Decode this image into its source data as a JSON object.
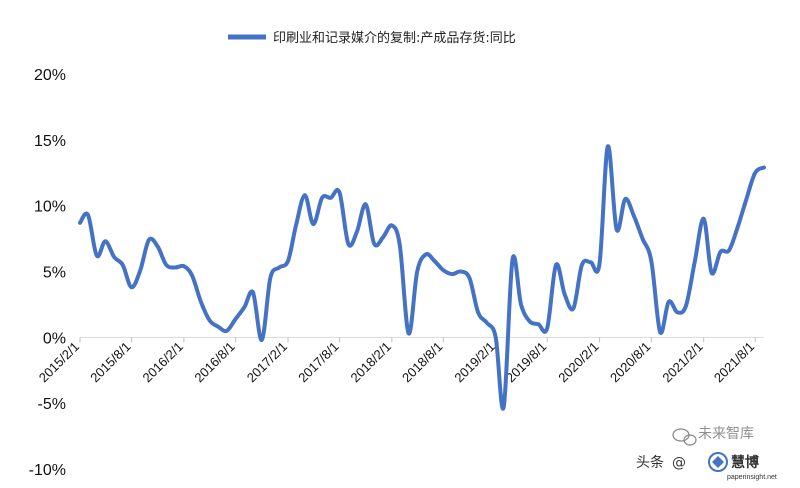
{
  "chart_data": {
    "type": "line",
    "legend_position": "top-center",
    "grid": false,
    "series": [
      {
        "name": "印刷业和记录媒介的复制:产成品存货:同比",
        "color": "#4472C4",
        "points": [
          [
            "2015-02-01",
            8.7
          ],
          [
            "2015-03-01",
            9.3
          ],
          [
            "2015-04-01",
            6.2
          ],
          [
            "2015-05-01",
            7.3
          ],
          [
            "2015-06-01",
            6.1
          ],
          [
            "2015-07-01",
            5.5
          ],
          [
            "2015-08-01",
            3.8
          ],
          [
            "2015-09-01",
            5.1
          ],
          [
            "2015-10-01",
            7.4
          ],
          [
            "2015-11-01",
            6.9
          ],
          [
            "2015-12-01",
            5.5
          ],
          [
            "2016-01-01",
            5.3
          ],
          [
            "2016-02-01",
            5.4
          ],
          [
            "2016-03-01",
            4.7
          ],
          [
            "2016-04-01",
            2.7
          ],
          [
            "2016-05-01",
            1.3
          ],
          [
            "2016-06-01",
            0.8
          ],
          [
            "2016-07-01",
            0.5
          ],
          [
            "2016-08-01",
            1.4
          ],
          [
            "2016-09-01",
            2.3
          ],
          [
            "2016-10-01",
            3.4
          ],
          [
            "2016-11-01",
            -0.2
          ],
          [
            "2016-12-01",
            4.5
          ],
          [
            "2017-01-01",
            5.3
          ],
          [
            "2017-02-01",
            5.8
          ],
          [
            "2017-03-01",
            8.5
          ],
          [
            "2017-04-01",
            10.8
          ],
          [
            "2017-05-01",
            8.6
          ],
          [
            "2017-06-01",
            10.6
          ],
          [
            "2017-07-01",
            10.6
          ],
          [
            "2017-08-01",
            11.0
          ],
          [
            "2017-09-01",
            7.1
          ],
          [
            "2017-10-01",
            8.0
          ],
          [
            "2017-11-01",
            10.1
          ],
          [
            "2017-12-01",
            7.1
          ],
          [
            "2018-01-01",
            7.6
          ],
          [
            "2018-02-01",
            8.5
          ],
          [
            "2018-03-01",
            7.0
          ],
          [
            "2018-04-01",
            0.3
          ],
          [
            "2018-05-01",
            5.0
          ],
          [
            "2018-06-01",
            6.3
          ],
          [
            "2018-07-01",
            5.8
          ],
          [
            "2018-08-01",
            5.1
          ],
          [
            "2018-09-01",
            4.8
          ],
          [
            "2018-10-01",
            5.0
          ],
          [
            "2018-11-01",
            4.5
          ],
          [
            "2018-12-01",
            1.9
          ],
          [
            "2019-01-01",
            1.1
          ],
          [
            "2019-02-01",
            0.0
          ],
          [
            "2019-03-01",
            -5.3
          ],
          [
            "2019-04-01",
            5.9
          ],
          [
            "2019-05-01",
            2.5
          ],
          [
            "2019-06-01",
            1.2
          ],
          [
            "2019-07-01",
            1.0
          ],
          [
            "2019-08-01",
            0.7
          ],
          [
            "2019-09-01",
            5.5
          ],
          [
            "2019-10-01",
            3.3
          ],
          [
            "2019-11-01",
            2.2
          ],
          [
            "2019-12-01",
            5.5
          ],
          [
            "2020-01-01",
            5.7
          ],
          [
            "2020-02-01",
            5.6
          ],
          [
            "2020-03-01",
            14.5
          ],
          [
            "2020-04-01",
            8.2
          ],
          [
            "2020-05-01",
            10.5
          ],
          [
            "2020-06-01",
            9.2
          ],
          [
            "2020-07-01",
            7.5
          ],
          [
            "2020-08-01",
            5.8
          ],
          [
            "2020-09-01",
            0.4
          ],
          [
            "2020-10-01",
            2.7
          ],
          [
            "2020-11-01",
            1.9
          ],
          [
            "2020-12-01",
            2.4
          ],
          [
            "2021-01-01",
            5.8
          ],
          [
            "2021-02-01",
            9.0
          ],
          [
            "2021-03-01",
            4.9
          ],
          [
            "2021-04-01",
            6.5
          ],
          [
            "2021-05-01",
            6.6
          ],
          [
            "2021-06-01",
            8.4
          ],
          [
            "2021-07-01",
            10.5
          ],
          [
            "2021-08-01",
            12.5
          ],
          [
            "2021-09-01",
            12.9
          ]
        ]
      }
    ],
    "x_ticks": [
      "2015/2/1",
      "2015/8/1",
      "2016/2/1",
      "2016/8/1",
      "2017/2/1",
      "2017/8/1",
      "2018/2/1",
      "2018/8/1",
      "2019/2/1",
      "2019/8/1",
      "2020/2/1",
      "2020/8/1",
      "2021/2/1",
      "2021/8/1"
    ],
    "x_range": [
      "2015-02-01",
      "2021-09-01"
    ],
    "y_ticks": [
      "20%",
      "15%",
      "10%",
      "5%",
      "0%",
      "-5%",
      "-10%"
    ],
    "y_tick_values": [
      20,
      15,
      10,
      5,
      0,
      -5,
      -10
    ],
    "ylim": [
      -10,
      20
    ]
  },
  "watermark": {
    "left_text": "头条",
    "at_text": "@",
    "overlay_text": "未来智库",
    "site_text": "paperinsight.net",
    "logo_text": "慧博"
  }
}
